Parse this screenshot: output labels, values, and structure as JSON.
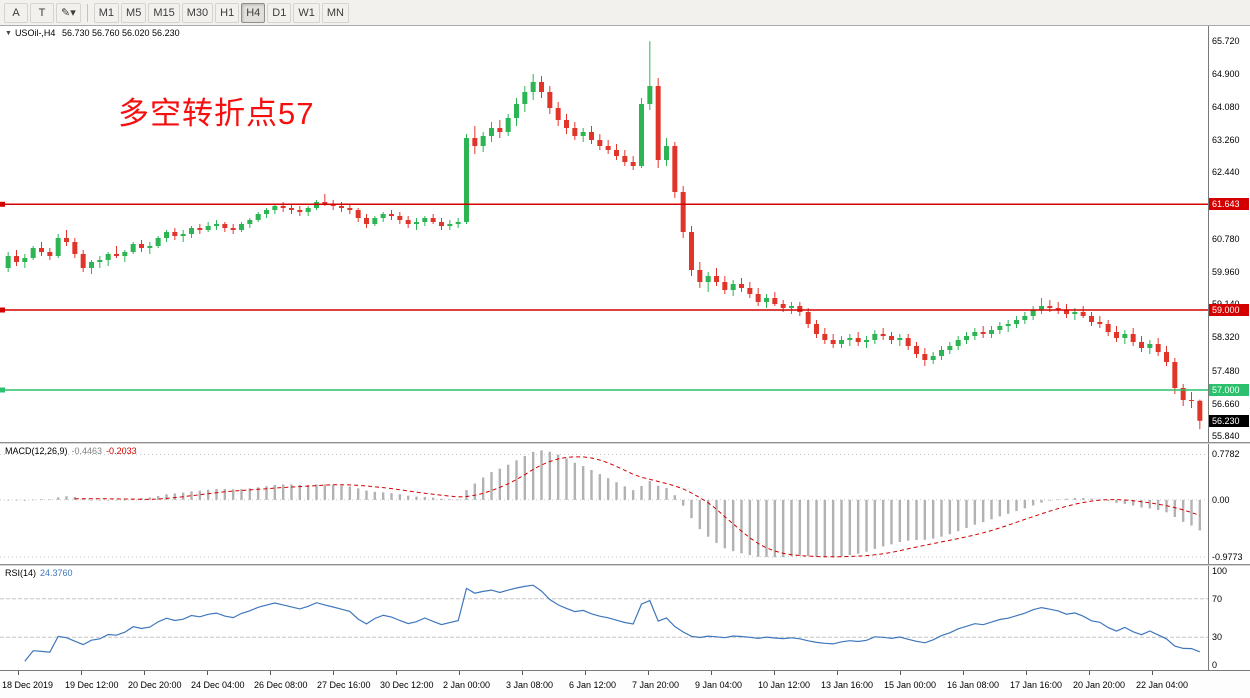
{
  "toolbar": {
    "left_buttons": [
      "A",
      "T",
      "✎▾"
    ],
    "timeframes": [
      "M1",
      "M5",
      "M15",
      "M30",
      "H1",
      "H4",
      "D1",
      "W1",
      "MN"
    ],
    "active_timeframe": "H4"
  },
  "header": {
    "dropdown_marker": "▼",
    "symbol_tf": "USOil-,H4",
    "ohlc_quote": "56.730 56.760 56.020 56.230"
  },
  "annotation": {
    "text": "多空转折点57",
    "color": "#f50f0f"
  },
  "chart_data": [
    {
      "type": "candlestick",
      "symbol": "USOil-",
      "timeframe": "H4",
      "up_color": "#2cb552",
      "down_color": "#e2352a",
      "ylim": [
        55.7,
        66.1
      ],
      "y_axis_ticks": [
        "65.720",
        "64.900",
        "64.080",
        "63.260",
        "62.440",
        "60.780",
        "59.960",
        "59.140",
        "58.320",
        "57.480",
        "56.660",
        "55.840"
      ],
      "x_axis_labels": [
        "18 Dec 2019",
        "19 Dec 12:00",
        "20 Dec 20:00",
        "24 Dec 04:00",
        "26 Dec 08:00",
        "27 Dec 16:00",
        "30 Dec 12:00",
        "2 Jan 00:00",
        "3 Jan 08:00",
        "6 Jan 12:00",
        "7 Jan 20:00",
        "9 Jan 04:00",
        "10 Jan 12:00",
        "13 Jan 16:00",
        "15 Jan 00:00",
        "16 Jan 08:00",
        "17 Jan 16:00",
        "20 Jan 20:00",
        "22 Jan 04:00"
      ],
      "hlines": [
        {
          "value": 61.643,
          "label": "61.643",
          "color": "#d40000",
          "badge_bg": "#d40000",
          "badge_fg": "#ffffff"
        },
        {
          "value": 59.0,
          "label": "59.000",
          "color": "#d40000",
          "badge_bg": "#d40000",
          "badge_fg": "#ffffff"
        },
        {
          "value": 57.0,
          "label": "57.000",
          "color": "#2bc16c",
          "badge_bg": "#2bc16c",
          "badge_fg": "#ffffff"
        }
      ],
      "last_price": {
        "value": 56.23,
        "label": "56.230",
        "badge_bg": "#000000",
        "badge_fg": "#ffffff"
      },
      "ohlc": [
        [
          60.05,
          60.45,
          59.95,
          60.35
        ],
        [
          60.35,
          60.5,
          60.1,
          60.2
        ],
        [
          60.2,
          60.4,
          60.05,
          60.3
        ],
        [
          60.3,
          60.6,
          60.25,
          60.55
        ],
        [
          60.55,
          60.7,
          60.35,
          60.45
        ],
        [
          60.45,
          60.55,
          60.25,
          60.35
        ],
        [
          60.35,
          60.9,
          60.3,
          60.8
        ],
        [
          60.8,
          61.0,
          60.6,
          60.7
        ],
        [
          60.7,
          60.8,
          60.3,
          60.4
        ],
        [
          60.4,
          60.5,
          59.95,
          60.05
        ],
        [
          60.05,
          60.25,
          59.9,
          60.2
        ],
        [
          60.2,
          60.35,
          60.05,
          60.25
        ],
        [
          60.25,
          60.45,
          60.1,
          60.4
        ],
        [
          60.4,
          60.6,
          60.3,
          60.35
        ],
        [
          60.35,
          60.5,
          60.2,
          60.45
        ],
        [
          60.45,
          60.7,
          60.4,
          60.65
        ],
        [
          60.65,
          60.75,
          60.45,
          60.55
        ],
        [
          60.55,
          60.7,
          60.4,
          60.6
        ],
        [
          60.6,
          60.85,
          60.55,
          60.8
        ],
        [
          60.8,
          61.0,
          60.7,
          60.95
        ],
        [
          60.95,
          61.05,
          60.75,
          60.85
        ],
        [
          60.85,
          61.0,
          60.7,
          60.9
        ],
        [
          60.9,
          61.1,
          60.8,
          61.05
        ],
        [
          61.05,
          61.15,
          60.9,
          61.0
        ],
        [
          61.0,
          61.2,
          60.95,
          61.1
        ],
        [
          61.1,
          61.25,
          61.0,
          61.15
        ],
        [
          61.15,
          61.2,
          60.95,
          61.05
        ],
        [
          61.05,
          61.15,
          60.9,
          61.0
        ],
        [
          61.0,
          61.2,
          60.95,
          61.15
        ],
        [
          61.15,
          61.3,
          61.05,
          61.25
        ],
        [
          61.25,
          61.45,
          61.2,
          61.4
        ],
        [
          61.4,
          61.55,
          61.3,
          61.5
        ],
        [
          61.5,
          61.65,
          61.4,
          61.6
        ],
        [
          61.6,
          61.7,
          61.45,
          61.55
        ],
        [
          61.55,
          61.65,
          61.4,
          61.5
        ],
        [
          61.5,
          61.6,
          61.35,
          61.45
        ],
        [
          61.45,
          61.6,
          61.35,
          61.55
        ],
        [
          61.55,
          61.75,
          61.5,
          61.7
        ],
        [
          61.7,
          61.9,
          61.6,
          61.65
        ],
        [
          61.65,
          61.75,
          61.5,
          61.6
        ],
        [
          61.6,
          61.7,
          61.45,
          61.55
        ],
        [
          61.55,
          61.65,
          61.4,
          61.5
        ],
        [
          61.5,
          61.55,
          61.2,
          61.3
        ],
        [
          61.3,
          61.4,
          61.05,
          61.15
        ],
        [
          61.15,
          61.35,
          61.1,
          61.3
        ],
        [
          61.3,
          61.45,
          61.2,
          61.4
        ],
        [
          61.4,
          61.5,
          61.25,
          61.35
        ],
        [
          61.35,
          61.45,
          61.15,
          61.25
        ],
        [
          61.25,
          61.35,
          61.05,
          61.15
        ],
        [
          61.15,
          61.3,
          61.0,
          61.2
        ],
        [
          61.2,
          61.35,
          61.1,
          61.3
        ],
        [
          61.3,
          61.4,
          61.15,
          61.2
        ],
        [
          61.2,
          61.3,
          61.0,
          61.1
        ],
        [
          61.1,
          61.25,
          61.0,
          61.15
        ],
        [
          61.15,
          61.3,
          61.05,
          61.2
        ],
        [
          61.2,
          63.4,
          61.15,
          63.3
        ],
        [
          63.3,
          63.6,
          62.9,
          63.1
        ],
        [
          63.1,
          63.45,
          62.95,
          63.35
        ],
        [
          63.35,
          63.7,
          63.2,
          63.55
        ],
        [
          63.55,
          63.75,
          63.3,
          63.45
        ],
        [
          63.45,
          63.9,
          63.35,
          63.8
        ],
        [
          63.8,
          64.3,
          63.6,
          64.15
        ],
        [
          64.15,
          64.6,
          63.95,
          64.45
        ],
        [
          64.45,
          64.9,
          64.25,
          64.7
        ],
        [
          64.7,
          64.85,
          64.3,
          64.45
        ],
        [
          64.45,
          64.6,
          63.9,
          64.05
        ],
        [
          64.05,
          64.2,
          63.6,
          63.75
        ],
        [
          63.75,
          63.9,
          63.4,
          63.55
        ],
        [
          63.55,
          63.7,
          63.25,
          63.35
        ],
        [
          63.35,
          63.55,
          63.2,
          63.45
        ],
        [
          63.45,
          63.6,
          63.15,
          63.25
        ],
        [
          63.25,
          63.4,
          63.0,
          63.1
        ],
        [
          63.1,
          63.25,
          62.9,
          63.0
        ],
        [
          63.0,
          63.15,
          62.75,
          62.85
        ],
        [
          62.85,
          63.0,
          62.6,
          62.7
        ],
        [
          62.7,
          62.85,
          62.5,
          62.6
        ],
        [
          62.6,
          64.3,
          62.55,
          64.15
        ],
        [
          64.15,
          65.72,
          64.0,
          64.6
        ],
        [
          64.6,
          64.8,
          62.55,
          62.75
        ],
        [
          62.75,
          63.3,
          62.6,
          63.1
        ],
        [
          63.1,
          63.2,
          61.8,
          61.95
        ],
        [
          61.95,
          62.1,
          60.8,
          60.95
        ],
        [
          60.95,
          61.1,
          59.85,
          60.0
        ],
        [
          60.0,
          60.2,
          59.55,
          59.7
        ],
        [
          59.7,
          59.95,
          59.45,
          59.85
        ],
        [
          59.85,
          60.05,
          59.6,
          59.7
        ],
        [
          59.7,
          59.85,
          59.4,
          59.5
        ],
        [
          59.5,
          59.75,
          59.35,
          59.65
        ],
        [
          59.65,
          59.8,
          59.45,
          59.55
        ],
        [
          59.55,
          59.7,
          59.3,
          59.4
        ],
        [
          59.4,
          59.55,
          59.1,
          59.2
        ],
        [
          59.2,
          59.4,
          59.05,
          59.3
        ],
        [
          59.3,
          59.45,
          59.1,
          59.15
        ],
        [
          59.15,
          59.25,
          58.95,
          59.05
        ],
        [
          59.05,
          59.2,
          58.9,
          59.1
        ],
        [
          59.1,
          59.2,
          58.85,
          58.95
        ],
        [
          58.95,
          59.05,
          58.55,
          58.65
        ],
        [
          58.65,
          58.75,
          58.3,
          58.4
        ],
        [
          58.4,
          58.55,
          58.15,
          58.25
        ],
        [
          58.25,
          58.4,
          58.05,
          58.15
        ],
        [
          58.15,
          58.35,
          58.05,
          58.25
        ],
        [
          58.25,
          58.4,
          58.1,
          58.3
        ],
        [
          58.3,
          58.45,
          58.1,
          58.2
        ],
        [
          58.2,
          58.35,
          58.05,
          58.25
        ],
        [
          58.25,
          58.5,
          58.15,
          58.4
        ],
        [
          58.4,
          58.55,
          58.25,
          58.35
        ],
        [
          58.35,
          58.45,
          58.15,
          58.25
        ],
        [
          58.25,
          58.4,
          58.1,
          58.3
        ],
        [
          58.3,
          58.4,
          58.0,
          58.1
        ],
        [
          58.1,
          58.2,
          57.8,
          57.9
        ],
        [
          57.9,
          58.05,
          57.6,
          57.75
        ],
        [
          57.75,
          57.95,
          57.65,
          57.85
        ],
        [
          57.85,
          58.1,
          57.75,
          58.0
        ],
        [
          58.0,
          58.2,
          57.9,
          58.1
        ],
        [
          58.1,
          58.35,
          58.0,
          58.25
        ],
        [
          58.25,
          58.45,
          58.15,
          58.35
        ],
        [
          58.35,
          58.55,
          58.25,
          58.45
        ],
        [
          58.45,
          58.6,
          58.3,
          58.4
        ],
        [
          58.4,
          58.6,
          58.3,
          58.5
        ],
        [
          58.5,
          58.7,
          58.4,
          58.6
        ],
        [
          58.6,
          58.75,
          58.45,
          58.65
        ],
        [
          58.65,
          58.85,
          58.55,
          58.75
        ],
        [
          58.75,
          58.95,
          58.65,
          58.85
        ],
        [
          58.85,
          59.1,
          58.75,
          59.0
        ],
        [
          59.0,
          59.3,
          58.9,
          59.1
        ],
        [
          59.1,
          59.25,
          58.95,
          59.05
        ],
        [
          59.05,
          59.2,
          58.9,
          59.0
        ],
        [
          59.0,
          59.15,
          58.8,
          58.9
        ],
        [
          58.9,
          59.05,
          58.75,
          58.95
        ],
        [
          58.95,
          59.1,
          58.8,
          58.85
        ],
        [
          58.85,
          58.95,
          58.6,
          58.7
        ],
        [
          58.7,
          58.85,
          58.55,
          58.65
        ],
        [
          58.65,
          58.75,
          58.35,
          58.45
        ],
        [
          58.45,
          58.6,
          58.2,
          58.3
        ],
        [
          58.3,
          58.5,
          58.15,
          58.4
        ],
        [
          58.4,
          58.55,
          58.1,
          58.2
        ],
        [
          58.2,
          58.35,
          57.95,
          58.05
        ],
        [
          58.05,
          58.25,
          57.9,
          58.15
        ],
        [
          58.15,
          58.3,
          57.85,
          57.95
        ],
        [
          57.95,
          58.1,
          57.6,
          57.7
        ],
        [
          57.7,
          57.8,
          56.9,
          57.05
        ],
        [
          57.05,
          57.15,
          56.6,
          56.75
        ],
        [
          56.75,
          56.95,
          56.55,
          56.73
        ],
        [
          56.73,
          56.76,
          56.02,
          56.23
        ]
      ]
    },
    {
      "type": "macd",
      "label": "MACD(12,26,9)",
      "params": [
        12,
        26,
        9
      ],
      "values_text": [
        "-0.4463",
        "-0.2033"
      ],
      "y_axis_ticks": [
        "0.7782",
        "0.00",
        "-0.9773"
      ],
      "histogram_color": "#b2b2b2",
      "signal_color": "#d40000",
      "derived_from": "candlestick closes"
    },
    {
      "type": "rsi",
      "label": "RSI(14)",
      "period": 14,
      "value_text": "24.3760",
      "levels": [
        70,
        30
      ],
      "y_axis_ticks": [
        "100",
        "70",
        "30",
        "0"
      ],
      "line_color": "#3f77bd"
    }
  ]
}
